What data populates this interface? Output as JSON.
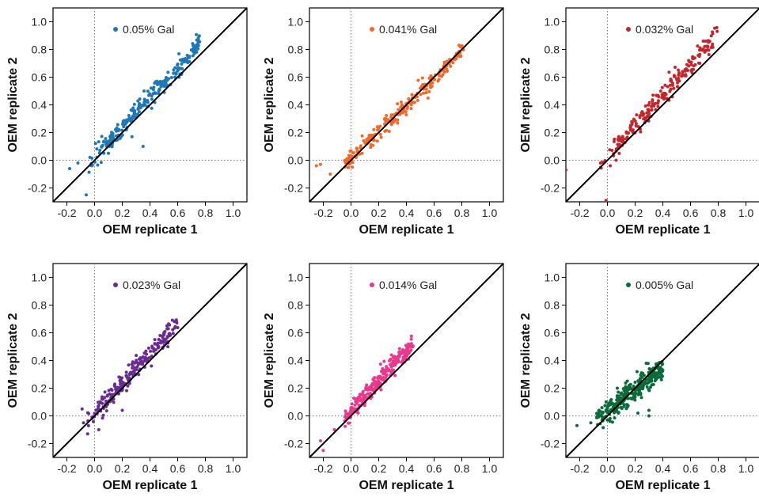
{
  "figure": {
    "rows": 2,
    "cols": 3,
    "legend_placement": "top-center",
    "grid": false,
    "reference_lines": [
      "x = 0 (dotted)",
      "y = 0 (dotted)",
      "y = x (solid diagonal)"
    ]
  },
  "chart_data": [
    {
      "type": "scatter",
      "legend": "0.05% Gal",
      "color": "#1F77B4",
      "xlabel": "OEM replicate 1",
      "ylabel": "OEM replicate 2",
      "xlim": [
        -0.3,
        1.1
      ],
      "ylim": [
        -0.3,
        1.1
      ],
      "xticks": [
        -0.2,
        0.0,
        0.2,
        0.4,
        0.6,
        0.8,
        1.0
      ],
      "yticks": [
        -0.2,
        0.0,
        0.2,
        0.4,
        0.6,
        0.8,
        1.0
      ],
      "trend": {
        "x_range": [
          -0.05,
          0.76
        ],
        "slope": 1.08,
        "intercept": 0.02,
        "spread": 0.035
      },
      "outliers": [
        [
          -0.12,
          -0.02
        ],
        [
          -0.18,
          -0.06
        ],
        [
          0.35,
          0.1
        ],
        [
          0.27,
          0.17
        ],
        [
          -0.06,
          -0.25
        ],
        [
          0.1,
          0.05
        ]
      ],
      "n_points": 240
    },
    {
      "type": "scatter",
      "legend": "0.041% Gal",
      "color": "#F26A2B",
      "xlabel": "OEM replicate 1",
      "ylabel": "OEM replicate 2",
      "xlim": [
        -0.3,
        1.1
      ],
      "ylim": [
        -0.3,
        1.1
      ],
      "xticks": [
        -0.2,
        0.0,
        0.2,
        0.4,
        0.6,
        0.8,
        1.0
      ],
      "yticks": [
        -0.2,
        0.0,
        0.2,
        0.4,
        0.6,
        0.8,
        1.0
      ],
      "trend": {
        "x_range": [
          -0.05,
          0.82
        ],
        "slope": 0.97,
        "intercept": 0.01,
        "spread": 0.03
      },
      "outliers": [
        [
          -0.22,
          -0.03
        ],
        [
          -0.25,
          -0.04
        ],
        [
          -0.15,
          -0.1
        ],
        [
          0.08,
          0.05
        ]
      ],
      "n_points": 240
    },
    {
      "type": "scatter",
      "legend": "0.032% Gal",
      "color": "#C1272D",
      "xlabel": "OEM replicate 1",
      "ylabel": "OEM replicate 2",
      "xlim": [
        -0.3,
        1.1
      ],
      "ylim": [
        -0.3,
        1.1
      ],
      "xticks": [
        -0.2,
        0.0,
        0.2,
        0.4,
        0.6,
        0.8,
        1.0
      ],
      "yticks": [
        -0.2,
        0.0,
        0.2,
        0.4,
        0.6,
        0.8,
        1.0
      ],
      "trend": {
        "x_range": [
          -0.05,
          0.8
        ],
        "slope": 1.1,
        "intercept": 0.03,
        "spread": 0.04
      },
      "outliers": [
        [
          -0.01,
          -0.29
        ],
        [
          -0.3,
          -0.07
        ],
        [
          -0.05,
          -0.02
        ],
        [
          0.02,
          -0.04
        ]
      ],
      "n_points": 220
    },
    {
      "type": "scatter",
      "legend": "0.023% Gal",
      "color": "#6A2C91",
      "xlabel": "OEM replicate 1",
      "ylabel": "OEM replicate 2",
      "xlim": [
        -0.3,
        1.1
      ],
      "ylim": [
        -0.3,
        1.1
      ],
      "xticks": [
        -0.2,
        0.0,
        0.2,
        0.4,
        0.6,
        0.8,
        1.0
      ],
      "yticks": [
        -0.2,
        0.0,
        0.2,
        0.4,
        0.6,
        0.8,
        1.0
      ],
      "trend": {
        "x_range": [
          -0.05,
          0.6
        ],
        "slope": 1.1,
        "intercept": 0.02,
        "spread": 0.035
      },
      "outliers": [
        [
          -0.09,
          0.05
        ],
        [
          -0.05,
          -0.13
        ],
        [
          0.03,
          -0.1
        ],
        [
          0.2,
          0.04
        ],
        [
          -0.08,
          -0.05
        ]
      ],
      "n_points": 240
    },
    {
      "type": "scatter",
      "legend": "0.014% Gal",
      "color": "#E8398C",
      "xlabel": "OEM replicate 1",
      "ylabel": "OEM replicate 2",
      "xlim": [
        -0.3,
        1.1
      ],
      "ylim": [
        -0.3,
        1.1
      ],
      "xticks": [
        -0.2,
        0.0,
        0.2,
        0.4,
        0.6,
        0.8,
        1.0
      ],
      "yticks": [
        -0.2,
        0.0,
        0.2,
        0.4,
        0.6,
        0.8,
        1.0
      ],
      "trend": {
        "x_range": [
          -0.05,
          0.45
        ],
        "slope": 1.1,
        "intercept": 0.03,
        "spread": 0.035
      },
      "outliers": [
        [
          -0.2,
          -0.25
        ],
        [
          -0.22,
          -0.18
        ],
        [
          -0.12,
          -0.1
        ],
        [
          0.12,
          0.16
        ]
      ],
      "n_points": 260
    },
    {
      "type": "scatter",
      "legend": "0.005% Gal",
      "color": "#0B6B3A",
      "xlabel": "OEM replicate 1",
      "ylabel": "OEM replicate 2",
      "xlim": [
        -0.3,
        1.1
      ],
      "ylim": [
        -0.3,
        1.1
      ],
      "xticks": [
        -0.2,
        0.0,
        0.2,
        0.4,
        0.6,
        0.8,
        1.0
      ],
      "yticks": [
        -0.2,
        0.0,
        0.2,
        0.4,
        0.6,
        0.8,
        1.0
      ],
      "trend": {
        "x_range": [
          -0.08,
          0.4
        ],
        "slope": 0.75,
        "intercept": 0.04,
        "spread": 0.04
      },
      "outliers": [
        [
          -0.22,
          -0.07
        ],
        [
          -0.12,
          -0.05
        ],
        [
          0.28,
          0.38
        ],
        [
          0.3,
          0.0
        ],
        [
          0.22,
          0.02
        ],
        [
          0.3,
          0.04
        ]
      ],
      "n_points": 300
    }
  ]
}
